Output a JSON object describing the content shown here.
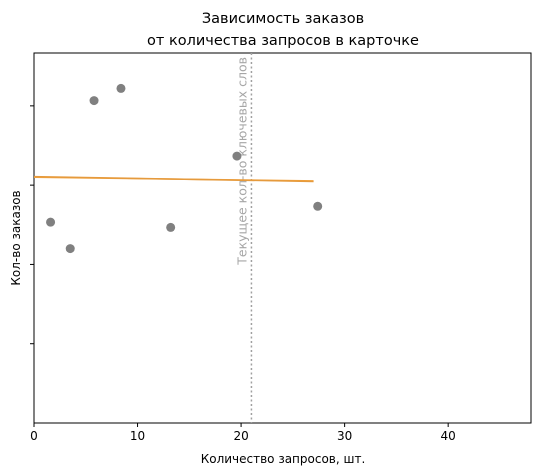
{
  "chart_data": {
    "type": "scatter",
    "title_line1": "Зависимость заказов",
    "title_line2": "от количества запросов в карточке",
    "xlabel": "Количество запросов, шт.",
    "ylabel": "Кол-во заказов",
    "xlim": [
      0,
      48
    ],
    "ylim": [
      0,
      7
    ],
    "xticks": [
      0,
      10,
      20,
      30,
      40
    ],
    "xtick_labels": [
      "0",
      "10",
      "20",
      "30",
      "40"
    ],
    "yticks": [
      1.5,
      3,
      4.5,
      6
    ],
    "points": [
      {
        "x": 1.6,
        "y": 3.8
      },
      {
        "x": 3.5,
        "y": 3.3
      },
      {
        "x": 5.8,
        "y": 6.1
      },
      {
        "x": 8.4,
        "y": 6.33
      },
      {
        "x": 13.2,
        "y": 3.7
      },
      {
        "x": 19.6,
        "y": 5.05
      },
      {
        "x": 27.4,
        "y": 4.1
      }
    ],
    "trend_lines": [
      {
        "x": [
          0,
          27
        ],
        "y": [
          4.65,
          4.58
        ],
        "color": "#f5a33a"
      },
      {
        "x": [
          0,
          27
        ],
        "y": [
          4.66,
          4.57
        ],
        "color": "#e59a3d"
      }
    ],
    "vline": {
      "x": 21,
      "label": "Текущее кол-во ключевых слов",
      "color": "#a0a0a0"
    },
    "point_color": "#808080",
    "grid": false,
    "legend": "none"
  }
}
